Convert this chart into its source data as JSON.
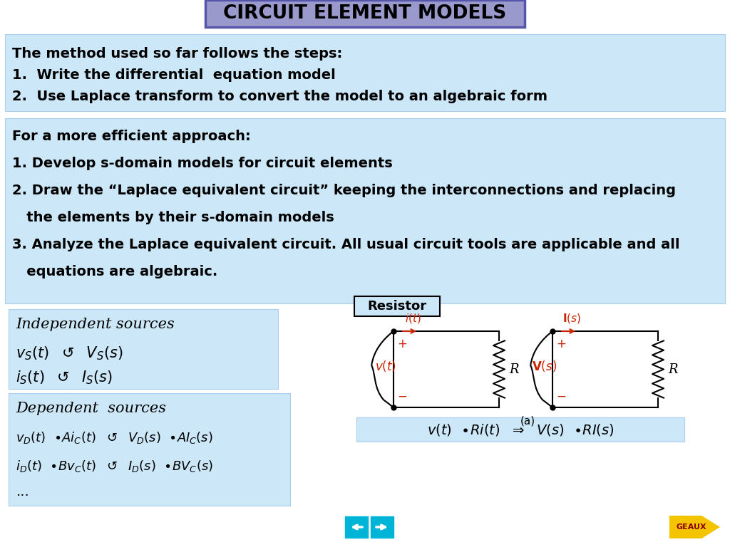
{
  "title": "CIRCUIT ELEMENT MODELS",
  "title_bg": "#9999cc",
  "title_border": "#5555aa",
  "bg_color": "#ffffff",
  "light_blue": "#cce8f8",
  "box1_lines": [
    "The method used so far follows the steps:",
    "1.  Write the differential  equation model",
    "2.  Use Laplace transform to convert the model to an algebraic form"
  ],
  "box2_lines": [
    "For a more efficient approach:",
    "1. Develop s-domain models for circuit elements",
    "2. Draw the “Laplace equivalent circuit” keeping the interconnections and replacing",
    "   the elements by their s-domain models",
    "3. Analyze the Laplace equivalent circuit. All usual circuit tools are applicable and all",
    "   equations are algebraic."
  ],
  "ind_header": "Independent sources",
  "dep_header": "Dependent  sources",
  "resistor_header": "Resistor",
  "red_color": "#cc2200",
  "dark_blue": "#0033bb",
  "teal": "#00b4d8",
  "geaux_yellow": "#f5c400",
  "geaux_border": "#cc8800",
  "geaux_text_color": "#8b0000",
  "nav_btn_color": "#00b4d8",
  "circuit_lw": 1.5,
  "box_edge": "#aaccee"
}
